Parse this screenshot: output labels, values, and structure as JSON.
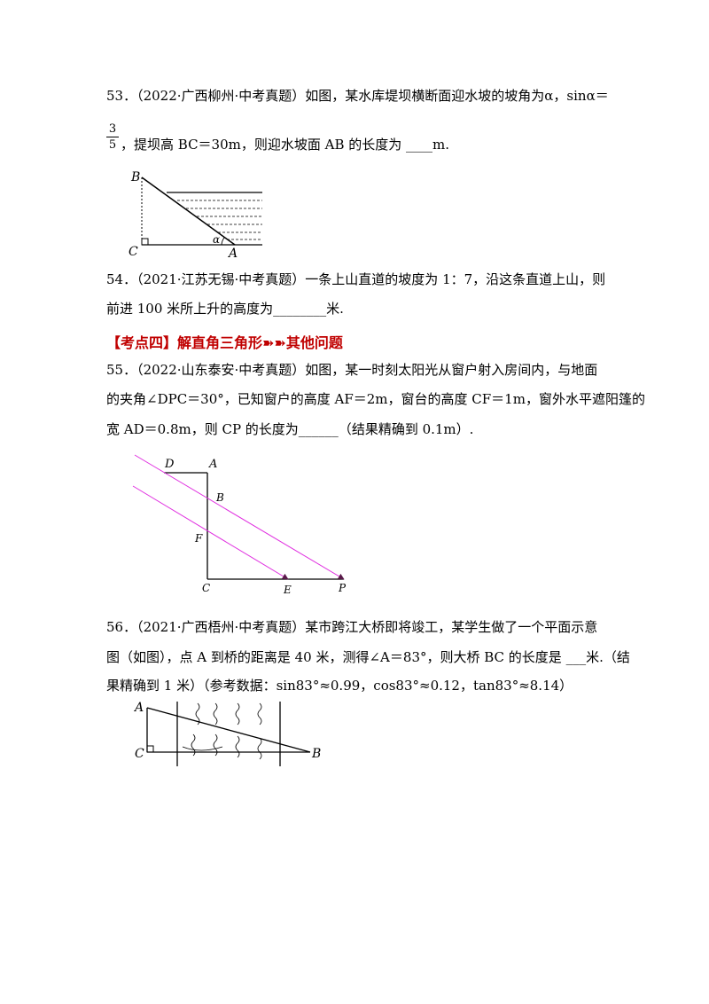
{
  "q53": {
    "line1": "53．（2022·广西柳州·中考真题）如图，某水库堤坝横断面迎水坡的坡角为α，sinα＝",
    "frac_num": "3",
    "frac_den": "5",
    "line2": "，提坝高 BC＝30m，则迎水坡面 AB 的长度为 ____m.",
    "labels": {
      "B": "B",
      "C": "C",
      "A": "A",
      "alpha": "α"
    }
  },
  "q54": {
    "line1": "54．（2021·江苏无锡·中考真题）一条上山直道的坡度为 1：7，沿这条直道上山，则",
    "line2": "前进 100 米所上升的高度为________米."
  },
  "section_heading": "【考点四】解直角三角形➽➽其他问题",
  "q55": {
    "line1": "55．（2022·山东泰安·中考真题）如图，某一时刻太阳光从窗户射入房间内，与地面",
    "line2": "的夹角∠DPC＝30°，已知窗户的高度 AF＝2m，窗台的高度 CF＝1m，窗外水平遮阳篷的",
    "line3": "宽 AD＝0.8m，则 CP 的长度为______（结果精确到 0.1m）.",
    "labels": {
      "D": "D",
      "A": "A",
      "B": "B",
      "F": "F",
      "C": "C",
      "E": "E",
      "P": "P"
    }
  },
  "q56": {
    "line1": "56．（2021·广西梧州·中考真题）某市跨江大桥即将竣工，某学生做了一个平面示意",
    "line2": "图（如图），点 A 到桥的距离是 40 米，测得∠A＝83°，则大桥 BC 的长度是 ___米.（结",
    "line3": "果精确到 1 米）（参考数据：sin83°≈0.99，cos83°≈0.12，tan83°≈8.14）",
    "labels": {
      "A": "A",
      "C": "C",
      "B": "B"
    }
  }
}
